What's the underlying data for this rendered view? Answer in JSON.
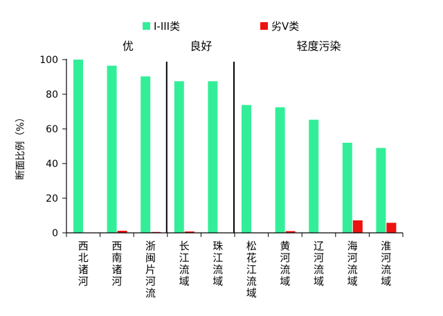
{
  "chart_data": {
    "type": "bar",
    "categories": [
      "西北诸河",
      "西南诸河",
      "浙闽片河流",
      "长江流域",
      "珠江流域",
      "松花江流域",
      "黄河流域",
      "辽河流域",
      "海河流域",
      "淮河流域"
    ],
    "series": [
      {
        "name": "I-III类",
        "color": "#33ee99",
        "values": [
          100,
          96.5,
          90.3,
          87.5,
          87.5,
          73.8,
          72.5,
          65.3,
          52,
          49
        ]
      },
      {
        "name": "劣V类",
        "color": "#ee1111",
        "values": [
          0,
          1.2,
          0.5,
          0.8,
          0,
          0,
          1,
          0,
          7.2,
          5.8
        ]
      }
    ],
    "groups": [
      {
        "label": "优",
        "start": 0,
        "end": 2
      },
      {
        "label": "良好",
        "start": 3,
        "end": 4
      },
      {
        "label": "轻度污染",
        "start": 5,
        "end": 9
      }
    ],
    "ylabel": "断面比例（%）",
    "xlabel": "",
    "title": "",
    "ylim": [
      0,
      100
    ],
    "yticks": [
      0,
      20,
      40,
      60,
      80,
      100
    ],
    "legend_position": "top",
    "grid": false
  }
}
